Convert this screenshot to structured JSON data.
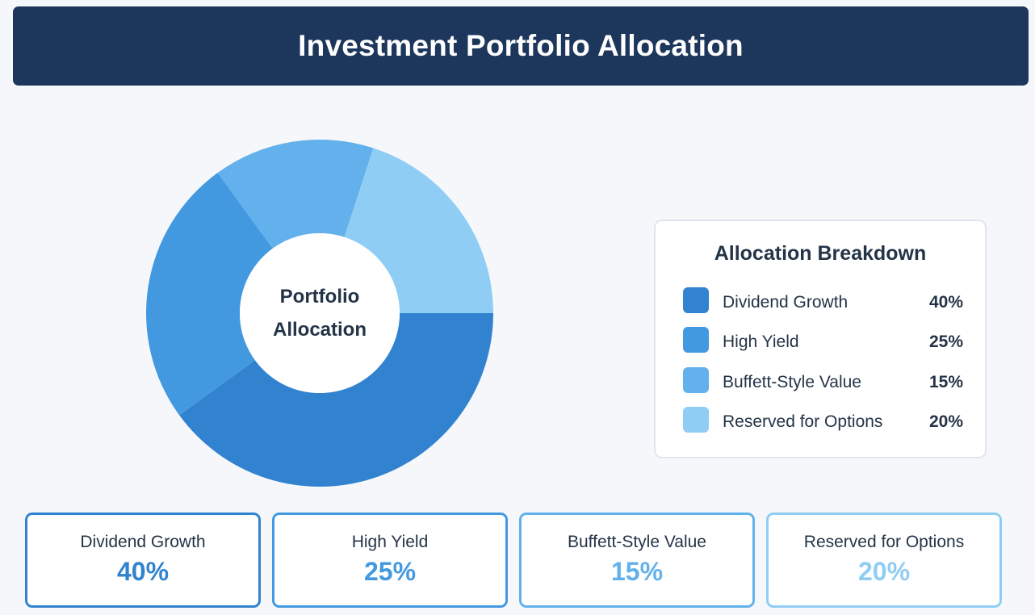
{
  "header": {
    "title": "Investment Portfolio Allocation"
  },
  "chart_data": {
    "type": "pie",
    "variant": "donut",
    "title": "Portfolio Allocation",
    "categories": [
      "Dividend Growth",
      "High Yield",
      "Buffett-Style Value",
      "Reserved for Options"
    ],
    "values": [
      40,
      25,
      15,
      20
    ],
    "colors": [
      "#3283cf",
      "#4399e0",
      "#63b1ec",
      "#90cdf4"
    ],
    "start_angle_deg": 90,
    "direction": "clockwise",
    "center_label_lines": [
      "Portfolio",
      "Allocation"
    ]
  },
  "legend": {
    "title": "Allocation Breakdown",
    "items": [
      {
        "label": "Dividend Growth",
        "value": "40%",
        "color": "#3283cf"
      },
      {
        "label": "High Yield",
        "value": "25%",
        "color": "#4399e0"
      },
      {
        "label": "Buffett-Style Value",
        "value": "15%",
        "color": "#63b1ec"
      },
      {
        "label": "Reserved for Options",
        "value": "20%",
        "color": "#90cdf4"
      }
    ]
  },
  "cards": [
    {
      "label": "Dividend Growth",
      "value": "40%",
      "color": "#3283cf"
    },
    {
      "label": "High Yield",
      "value": "25%",
      "color": "#4399e0"
    },
    {
      "label": "Buffett-Style Value",
      "value": "15%",
      "color": "#63b1ec"
    },
    {
      "label": "Reserved for Options",
      "value": "20%",
      "color": "#90cdf4"
    }
  ]
}
